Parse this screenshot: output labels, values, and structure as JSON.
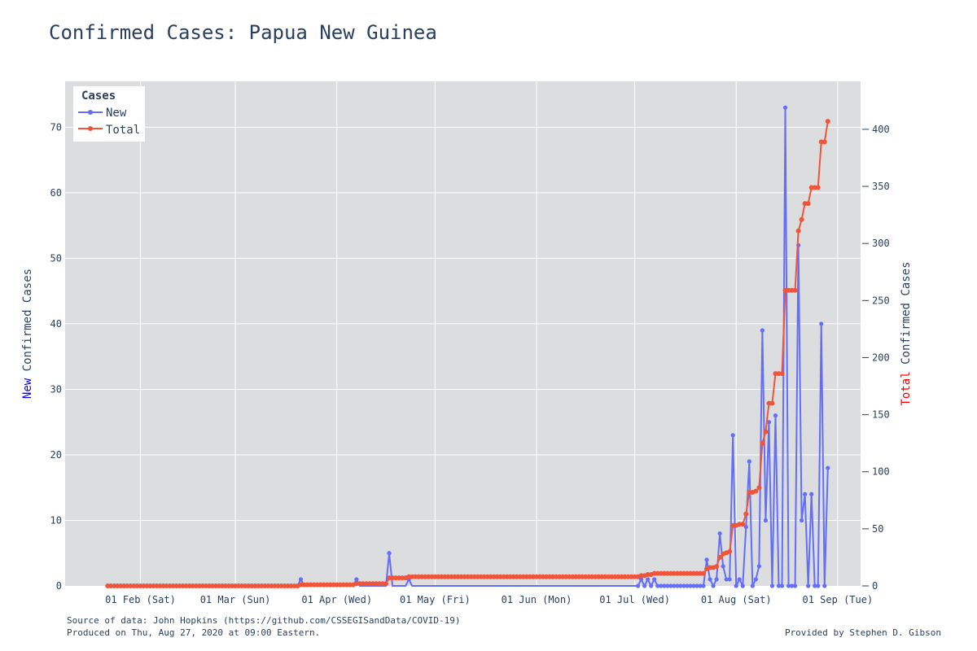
{
  "title": "Confirmed Cases: Papua New Guinea",
  "footer": {
    "source": "Source of data: John Hopkins (https://github.com/CSSEGISandData/COVID-19)",
    "produced": "Produced on Thu, Aug 27, 2020 at 09:00 Eastern.",
    "credit": "Provided by Stephen D. Gibson"
  },
  "colors": {
    "new": "#636efa",
    "total": "#ef553b",
    "plot_bg": "#dcdddf",
    "grid": "#ffffff",
    "new_label": "#0000ff",
    "total_label": "#ff0000"
  },
  "chart_data": {
    "type": "line",
    "x_start": "2020-01-22",
    "x_end": "2020-08-26",
    "x_ticks": [
      {
        "date": "2020-02-01",
        "label": "01 Feb (Sat)"
      },
      {
        "date": "2020-03-01",
        "label": "01 Mar (Sun)"
      },
      {
        "date": "2020-04-01",
        "label": "01 Apr (Wed)"
      },
      {
        "date": "2020-05-01",
        "label": "01 May (Fri)"
      },
      {
        "date": "2020-06-01",
        "label": "01 Jun (Mon)"
      },
      {
        "date": "2020-07-01",
        "label": "01 Jul (Wed)"
      },
      {
        "date": "2020-08-01",
        "label": "01 Aug (Sat)"
      },
      {
        "date": "2020-09-01",
        "label": "01 Sep (Tue)"
      }
    ],
    "x_range": [
      "2020-01-09",
      "2020-09-08"
    ],
    "y_left": {
      "title_colored": "New",
      "title_rest": " Confirmed Cases",
      "range": [
        0,
        77
      ],
      "ticks": [
        0,
        10,
        20,
        30,
        40,
        50,
        60,
        70
      ]
    },
    "y_right": {
      "title_colored": "Total",
      "title_rest": " Confirmed Cases",
      "range": [
        0,
        442
      ],
      "ticks": [
        0,
        50,
        100,
        150,
        200,
        250,
        300,
        350,
        400
      ]
    },
    "legend": {
      "title": "Cases",
      "position": "top-left",
      "entries": [
        "New",
        "Total"
      ]
    },
    "events": [
      {
        "date": "2020-03-21",
        "new": 1
      },
      {
        "date": "2020-04-07",
        "new": 1
      },
      {
        "date": "2020-04-17",
        "new": 5
      },
      {
        "date": "2020-04-23",
        "new": 1
      },
      {
        "date": "2020-07-03",
        "new": 1
      },
      {
        "date": "2020-07-05",
        "new": 1
      },
      {
        "date": "2020-07-07",
        "new": 1
      },
      {
        "date": "2020-07-23",
        "new": 4
      },
      {
        "date": "2020-07-24",
        "new": 1
      },
      {
        "date": "2020-07-26",
        "new": 1
      },
      {
        "date": "2020-07-27",
        "new": 8
      },
      {
        "date": "2020-07-28",
        "new": 3
      },
      {
        "date": "2020-07-29",
        "new": 1
      },
      {
        "date": "2020-07-30",
        "new": 1
      },
      {
        "date": "2020-07-31",
        "new": 23
      },
      {
        "date": "2020-08-02",
        "new": 1
      },
      {
        "date": "2020-08-04",
        "new": 9
      },
      {
        "date": "2020-08-05",
        "new": 19
      },
      {
        "date": "2020-08-07",
        "new": 1
      },
      {
        "date": "2020-08-08",
        "new": 3
      },
      {
        "date": "2020-08-09",
        "new": 39
      },
      {
        "date": "2020-08-10",
        "new": 10
      },
      {
        "date": "2020-08-11",
        "new": 25
      },
      {
        "date": "2020-08-13",
        "new": 26
      },
      {
        "date": "2020-08-16",
        "new": 73
      },
      {
        "date": "2020-08-20",
        "new": 52
      },
      {
        "date": "2020-08-21",
        "new": 10
      },
      {
        "date": "2020-08-22",
        "new": 14
      },
      {
        "date": "2020-08-24",
        "new": 14
      },
      {
        "date": "2020-08-27",
        "new": 40
      },
      {
        "date": "2020-08-29",
        "new": 18
      }
    ]
  }
}
